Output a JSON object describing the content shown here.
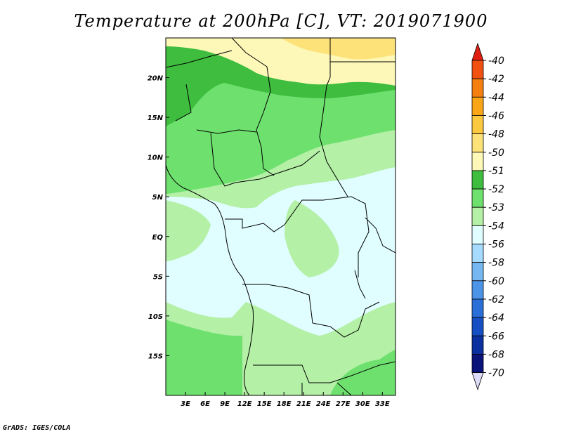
{
  "title": "Temperature at 200hPa [C], VT: 2019071900",
  "credit": "GrADS: IGES/COLA",
  "map": {
    "lon_range": [
      0,
      35
    ],
    "lat_range": [
      -20,
      25
    ],
    "lon_ticks": [
      {
        "value": 3,
        "label": "3E"
      },
      {
        "value": 6,
        "label": "6E"
      },
      {
        "value": 9,
        "label": "9E"
      },
      {
        "value": 12,
        "label": "12E"
      },
      {
        "value": 15,
        "label": "15E"
      },
      {
        "value": 18,
        "label": "18E"
      },
      {
        "value": 21,
        "label": "21E"
      },
      {
        "value": 24,
        "label": "24E"
      },
      {
        "value": 27,
        "label": "27E"
      },
      {
        "value": 30,
        "label": "30E"
      },
      {
        "value": 33,
        "label": "33E"
      }
    ],
    "lat_ticks": [
      {
        "value": 20,
        "label": "20N"
      },
      {
        "value": 15,
        "label": "15N"
      },
      {
        "value": 10,
        "label": "10N"
      },
      {
        "value": 5,
        "label": "5N"
      },
      {
        "value": 0,
        "label": "EQ"
      },
      {
        "value": -5,
        "label": "5S"
      },
      {
        "value": -10,
        "label": "10S"
      },
      {
        "value": -15,
        "label": "15S"
      }
    ]
  },
  "colorbar": {
    "labels": [
      "-40",
      "-42",
      "-44",
      "-46",
      "-48",
      "-50",
      "-51",
      "-52",
      "-53",
      "-54",
      "-56",
      "-58",
      "-60",
      "-62",
      "-64",
      "-66",
      "-68",
      "-70"
    ],
    "colors": [
      "#e01f10",
      "#f05010",
      "#f57f10",
      "#faa518",
      "#fbc840",
      "#fde27a",
      "#fdf8b8",
      "#3ebd3e",
      "#6ee06e",
      "#b4f0a6",
      "#e0fdff",
      "#a6dbff",
      "#75b8f2",
      "#4c94e8",
      "#2a6fd8",
      "#164ec4",
      "#0a2f9e",
      "#0a137a",
      "#dcdcf8"
    ]
  },
  "field_colors": {
    "pale_yellow": "#fdf8b8",
    "light_yellow": "#fde27a",
    "dark_green": "#3ebd3e",
    "green": "#6ee06e",
    "light_green": "#b4f0a6",
    "pale_cyan": "#e0fdff"
  }
}
